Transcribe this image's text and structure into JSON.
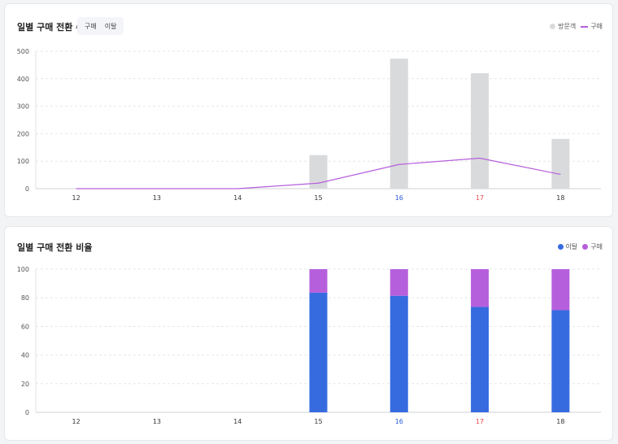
{
  "chart_data": [
    {
      "type": "bar",
      "title": "일별 구매 전환 수",
      "tabs": [
        "구매",
        "이탈"
      ],
      "legend": {
        "position": "top-right",
        "items": [
          {
            "label": "방문객",
            "kind": "dot",
            "color": "#d9dadc"
          },
          {
            "label": "구매",
            "kind": "line",
            "color": "#b65fdc"
          }
        ]
      },
      "categories": [
        "12",
        "13",
        "14",
        "15",
        "16",
        "17",
        "18"
      ],
      "category_colors": [
        "#333333",
        "#333333",
        "#333333",
        "#333333",
        "#2d5bd7",
        "#e5484d",
        "#333333"
      ],
      "series": [
        {
          "name": "방문객",
          "kind": "bar",
          "color": "#d9dadc",
          "values": [
            0,
            0,
            0,
            122,
            473,
            420,
            181
          ]
        },
        {
          "name": "구매",
          "kind": "line",
          "color": "#b65fdc",
          "values": [
            0,
            0,
            0,
            20,
            88,
            111,
            52
          ]
        }
      ],
      "y_ticks": [
        0,
        100,
        200,
        300,
        400,
        500
      ],
      "ylim": [
        0,
        500
      ],
      "grid": true
    },
    {
      "type": "bar",
      "stacked": true,
      "title": "일별 구매 전환 비율",
      "legend": {
        "position": "top-right",
        "items": [
          {
            "label": "이탈",
            "kind": "dot",
            "color": "#366be0"
          },
          {
            "label": "구매",
            "kind": "dot",
            "color": "#b65fdc"
          }
        ]
      },
      "categories": [
        "12",
        "13",
        "14",
        "15",
        "16",
        "17",
        "18"
      ],
      "category_colors": [
        "#333333",
        "#333333",
        "#333333",
        "#333333",
        "#2d5bd7",
        "#e5484d",
        "#333333"
      ],
      "series": [
        {
          "name": "이탈",
          "color": "#366be0",
          "values": [
            0,
            0,
            0,
            83.6,
            81.4,
            73.6,
            71.3
          ]
        },
        {
          "name": "구매",
          "color": "#b65fdc",
          "values": [
            0,
            0,
            0,
            16.4,
            18.6,
            26.4,
            28.7
          ]
        }
      ],
      "y_ticks": [
        0,
        20,
        40,
        60,
        80,
        100
      ],
      "ylim": [
        0,
        100
      ],
      "grid": true
    }
  ]
}
